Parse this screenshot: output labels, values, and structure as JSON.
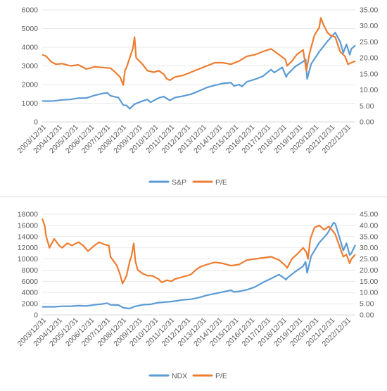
{
  "chart_data": [
    {
      "type": "line",
      "title": "",
      "y_left": {
        "ticks": [
          "0",
          "1000",
          "2000",
          "3000",
          "4000",
          "5000",
          "6000"
        ],
        "min": 0,
        "max": 6000
      },
      "y_right": {
        "ticks": [
          "0.00",
          "5.00",
          "10.00",
          "15.00",
          "20.00",
          "25.00",
          "30.00",
          "35.00"
        ],
        "min": 0,
        "max": 35
      },
      "x_ticks": [
        "2003/12/31",
        "2004/12/31",
        "2005/12/31",
        "2006/12/31",
        "2007/12/31",
        "2008/12/31",
        "2009/12/31",
        "2010/12/31",
        "2011/12/31",
        "2012/12/31",
        "2013/12/31",
        "2014/12/31",
        "2015/12/31",
        "2016/12/31",
        "2017/12/31",
        "2018/12/31",
        "2019/12/31",
        "2020/12/31",
        "2021/12/31",
        "2022/12/31"
      ],
      "x_range": [
        2003.75,
        2023.25
      ],
      "legend": {
        "position": "bottom"
      },
      "series": [
        {
          "name": "S&P",
          "axis": "left",
          "color": "#5b9bd5",
          "points": [
            [
              2003.75,
              1120
            ],
            [
              2004.0,
              1110
            ],
            [
              2004.5,
              1120
            ],
            [
              2005.0,
              1180
            ],
            [
              2005.5,
              1200
            ],
            [
              2006.0,
              1270
            ],
            [
              2006.5,
              1280
            ],
            [
              2007.0,
              1420
            ],
            [
              2007.5,
              1520
            ],
            [
              2007.8,
              1560
            ],
            [
              2008.0,
              1400
            ],
            [
              2008.5,
              1300
            ],
            [
              2008.8,
              900
            ],
            [
              2009.0,
              880
            ],
            [
              2009.2,
              700
            ],
            [
              2009.5,
              950
            ],
            [
              2010.0,
              1120
            ],
            [
              2010.3,
              1200
            ],
            [
              2010.5,
              1050
            ],
            [
              2011.0,
              1280
            ],
            [
              2011.3,
              1360
            ],
            [
              2011.7,
              1150
            ],
            [
              2012.0,
              1300
            ],
            [
              2012.5,
              1380
            ],
            [
              2013.0,
              1480
            ],
            [
              2013.5,
              1650
            ],
            [
              2014.0,
              1840
            ],
            [
              2014.5,
              1960
            ],
            [
              2015.0,
              2060
            ],
            [
              2015.5,
              2100
            ],
            [
              2015.7,
              1920
            ],
            [
              2016.0,
              2000
            ],
            [
              2016.2,
              1900
            ],
            [
              2016.5,
              2150
            ],
            [
              2017.0,
              2280
            ],
            [
              2017.5,
              2450
            ],
            [
              2018.0,
              2800
            ],
            [
              2018.2,
              2640
            ],
            [
              2018.7,
              2920
            ],
            [
              2018.95,
              2400
            ],
            [
              2019.0,
              2520
            ],
            [
              2019.5,
              2960
            ],
            [
              2020.0,
              3230
            ],
            [
              2020.15,
              3350
            ],
            [
              2020.25,
              2300
            ],
            [
              2020.5,
              3100
            ],
            [
              2021.0,
              3760
            ],
            [
              2021.5,
              4300
            ],
            [
              2022.0,
              4780
            ],
            [
              2022.3,
              4300
            ],
            [
              2022.5,
              3700
            ],
            [
              2022.7,
              4150
            ],
            [
              2022.9,
              3600
            ],
            [
              2023.0,
              3900
            ],
            [
              2023.25,
              4100
            ]
          ]
        },
        {
          "name": "P/E",
          "axis": "right",
          "color": "#ed7d31",
          "points": [
            [
              2003.75,
              21.0
            ],
            [
              2004.0,
              20.5
            ],
            [
              2004.3,
              18.8
            ],
            [
              2004.6,
              18.0
            ],
            [
              2005.0,
              18.2
            ],
            [
              2005.5,
              17.5
            ],
            [
              2006.0,
              17.8
            ],
            [
              2006.5,
              16.5
            ],
            [
              2007.0,
              17.2
            ],
            [
              2007.5,
              17.0
            ],
            [
              2008.0,
              16.8
            ],
            [
              2008.3,
              15.5
            ],
            [
              2008.6,
              14.0
            ],
            [
              2008.8,
              11.5
            ],
            [
              2008.9,
              16.0
            ],
            [
              2009.0,
              17.0
            ],
            [
              2009.2,
              20.0
            ],
            [
              2009.4,
              23.0
            ],
            [
              2009.5,
              26.5
            ],
            [
              2009.6,
              20.0
            ],
            [
              2010.0,
              18.0
            ],
            [
              2010.3,
              16.0
            ],
            [
              2010.7,
              15.5
            ],
            [
              2011.0,
              16.0
            ],
            [
              2011.3,
              15.0
            ],
            [
              2011.5,
              13.5
            ],
            [
              2011.7,
              13.0
            ],
            [
              2012.0,
              14.0
            ],
            [
              2012.5,
              14.5
            ],
            [
              2013.0,
              15.5
            ],
            [
              2013.5,
              16.5
            ],
            [
              2014.0,
              17.5
            ],
            [
              2014.5,
              18.5
            ],
            [
              2015.0,
              18.5
            ],
            [
              2015.5,
              18.0
            ],
            [
              2016.0,
              19.0
            ],
            [
              2016.5,
              20.5
            ],
            [
              2017.0,
              21.0
            ],
            [
              2017.5,
              22.0
            ],
            [
              2017.8,
              22.5
            ],
            [
              2018.0,
              22.8
            ],
            [
              2018.5,
              21.0
            ],
            [
              2018.9,
              19.5
            ],
            [
              2019.0,
              17.5
            ],
            [
              2019.3,
              19.0
            ],
            [
              2019.6,
              21.0
            ],
            [
              2020.0,
              22.5
            ],
            [
              2020.2,
              16.0
            ],
            [
              2020.4,
              21.5
            ],
            [
              2020.7,
              27.0
            ],
            [
              2021.0,
              29.5
            ],
            [
              2021.1,
              32.5
            ],
            [
              2021.3,
              30.0
            ],
            [
              2021.5,
              28.0
            ],
            [
              2021.7,
              27.0
            ],
            [
              2022.0,
              26.5
            ],
            [
              2022.3,
              22.0
            ],
            [
              2022.6,
              20.5
            ],
            [
              2022.8,
              18.0
            ],
            [
              2023.0,
              18.5
            ],
            [
              2023.25,
              19.0
            ]
          ]
        }
      ]
    },
    {
      "type": "line",
      "title": "",
      "y_left": {
        "ticks": [
          "0",
          "2000",
          "4000",
          "6000",
          "8000",
          "10000",
          "12000",
          "14000",
          "16000",
          "18000"
        ],
        "min": 0,
        "max": 18000
      },
      "y_right": {
        "ticks": [
          "0.00",
          "5.00",
          "10.00",
          "15.00",
          "20.00",
          "25.00",
          "30.00",
          "35.00",
          "40.00",
          "45.00"
        ],
        "min": 0,
        "max": 45
      },
      "x_ticks": [
        "2003/12/31",
        "2004/12/31",
        "2005/12/31",
        "2006/12/31",
        "2007/12/31",
        "2008/12/31",
        "2009/12/31",
        "2010/12/31",
        "2011/12/31",
        "2012/12/31",
        "2013/12/31",
        "2014/12/31",
        "2015/12/31",
        "2016/12/31",
        "2017/12/31",
        "2018/12/31",
        "2019/12/31",
        "2020/12/31",
        "2021/12/31",
        "2022/12/31"
      ],
      "x_range": [
        2003.75,
        2023.25
      ],
      "legend": {
        "position": "bottom"
      },
      "series": [
        {
          "name": "NDX",
          "axis": "left",
          "color": "#5b9bd5",
          "points": [
            [
              2003.75,
              1450
            ],
            [
              2004.0,
              1450
            ],
            [
              2004.5,
              1450
            ],
            [
              2005.0,
              1550
            ],
            [
              2005.5,
              1550
            ],
            [
              2006.0,
              1650
            ],
            [
              2006.5,
              1600
            ],
            [
              2007.0,
              1800
            ],
            [
              2007.5,
              1950
            ],
            [
              2007.8,
              2100
            ],
            [
              2008.0,
              1800
            ],
            [
              2008.5,
              1750
            ],
            [
              2008.8,
              1300
            ],
            [
              2009.0,
              1200
            ],
            [
              2009.2,
              1150
            ],
            [
              2009.5,
              1500
            ],
            [
              2010.0,
              1800
            ],
            [
              2010.5,
              1900
            ],
            [
              2011.0,
              2200
            ],
            [
              2011.5,
              2300
            ],
            [
              2012.0,
              2450
            ],
            [
              2012.5,
              2700
            ],
            [
              2013.0,
              2800
            ],
            [
              2013.5,
              3100
            ],
            [
              2014.0,
              3500
            ],
            [
              2014.5,
              3800
            ],
            [
              2015.0,
              4100
            ],
            [
              2015.5,
              4400
            ],
            [
              2015.7,
              4100
            ],
            [
              2016.0,
              4200
            ],
            [
              2016.5,
              4500
            ],
            [
              2017.0,
              5000
            ],
            [
              2017.5,
              5800
            ],
            [
              2018.0,
              6500
            ],
            [
              2018.5,
              7200
            ],
            [
              2018.95,
              6300
            ],
            [
              2019.0,
              6600
            ],
            [
              2019.5,
              7700
            ],
            [
              2020.0,
              8700
            ],
            [
              2020.15,
              9500
            ],
            [
              2020.25,
              7500
            ],
            [
              2020.5,
              10500
            ],
            [
              2021.0,
              12900
            ],
            [
              2021.5,
              14500
            ],
            [
              2021.9,
              16500
            ],
            [
              2022.0,
              16300
            ],
            [
              2022.3,
              13500
            ],
            [
              2022.5,
              11500
            ],
            [
              2022.7,
              12800
            ],
            [
              2022.9,
              10700
            ],
            [
              2023.0,
              11000
            ],
            [
              2023.25,
              12500
            ]
          ]
        },
        {
          "name": "P/E",
          "axis": "right",
          "color": "#ed7d31",
          "points": [
            [
              2003.75,
              43.0
            ],
            [
              2003.9,
              40.0
            ],
            [
              2004.0,
              35.0
            ],
            [
              2004.2,
              30.0
            ],
            [
              2004.5,
              34.0
            ],
            [
              2004.8,
              31.0
            ],
            [
              2005.0,
              30.0
            ],
            [
              2005.3,
              32.0
            ],
            [
              2005.6,
              31.0
            ],
            [
              2006.0,
              32.5
            ],
            [
              2006.3,
              31.0
            ],
            [
              2006.6,
              28.5
            ],
            [
              2007.0,
              31.0
            ],
            [
              2007.3,
              32.5
            ],
            [
              2007.6,
              31.5
            ],
            [
              2007.9,
              31.0
            ],
            [
              2008.0,
              26.0
            ],
            [
              2008.4,
              22.0
            ],
            [
              2008.6,
              18.0
            ],
            [
              2008.75,
              14.0
            ],
            [
              2008.9,
              16.0
            ],
            [
              2009.0,
              17.5
            ],
            [
              2009.2,
              24.0
            ],
            [
              2009.3,
              26.0
            ],
            [
              2009.45,
              32.0
            ],
            [
              2009.55,
              24.0
            ],
            [
              2009.7,
              20.0
            ],
            [
              2010.0,
              18.5
            ],
            [
              2010.3,
              17.5
            ],
            [
              2010.6,
              17.5
            ],
            [
              2011.0,
              16.0
            ],
            [
              2011.2,
              14.5
            ],
            [
              2011.5,
              15.5
            ],
            [
              2011.8,
              15.0
            ],
            [
              2012.0,
              16.0
            ],
            [
              2012.5,
              17.0
            ],
            [
              2013.0,
              18.0
            ],
            [
              2013.3,
              20.0
            ],
            [
              2013.6,
              21.5
            ],
            [
              2014.0,
              22.5
            ],
            [
              2014.5,
              23.5
            ],
            [
              2015.0,
              23.0
            ],
            [
              2015.5,
              22.0
            ],
            [
              2016.0,
              22.5
            ],
            [
              2016.5,
              24.5
            ],
            [
              2017.0,
              25.0
            ],
            [
              2017.5,
              25.5
            ],
            [
              2018.0,
              26.0
            ],
            [
              2018.5,
              24.5
            ],
            [
              2018.9,
              22.0
            ],
            [
              2019.0,
              21.0
            ],
            [
              2019.3,
              25.0
            ],
            [
              2019.6,
              27.0
            ],
            [
              2020.0,
              30.0
            ],
            [
              2020.2,
              28.0
            ],
            [
              2020.3,
              25.0
            ],
            [
              2020.45,
              34.0
            ],
            [
              2020.7,
              39.0
            ],
            [
              2021.0,
              40.0
            ],
            [
              2021.3,
              38.0
            ],
            [
              2021.6,
              39.5
            ],
            [
              2021.9,
              37.0
            ],
            [
              2022.0,
              36.0
            ],
            [
              2022.3,
              30.0
            ],
            [
              2022.5,
              26.0
            ],
            [
              2022.7,
              27.0
            ],
            [
              2022.9,
              23.0
            ],
            [
              2023.0,
              25.0
            ],
            [
              2023.25,
              27.0
            ]
          ]
        }
      ]
    }
  ]
}
